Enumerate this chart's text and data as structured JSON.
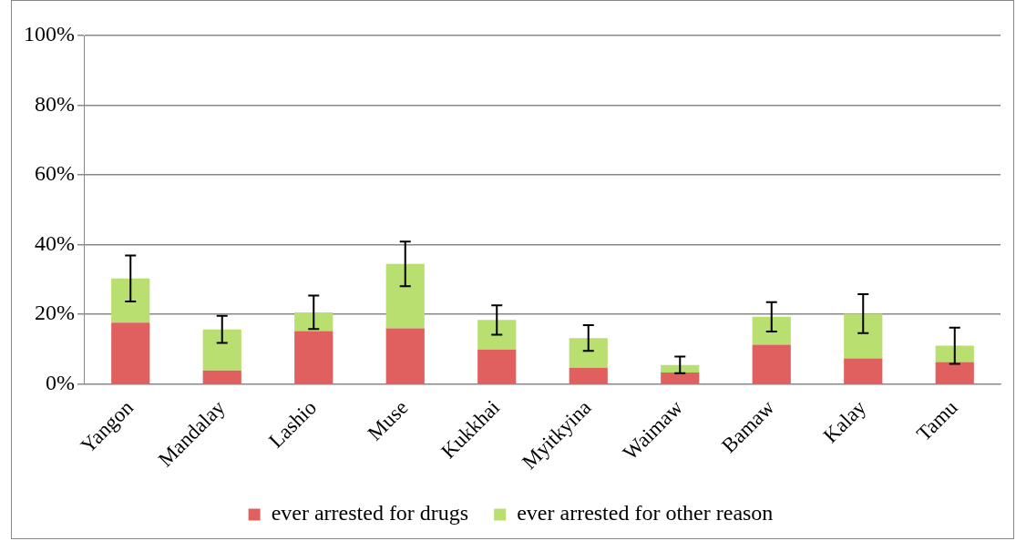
{
  "chart_data": {
    "type": "bar",
    "stacked": true,
    "categories": [
      "Yangon",
      "Mandalay",
      "Lashio",
      "Muse",
      "Kukkhai",
      "Myitkyina",
      "Waimaw",
      "Bamaw",
      "Kalay",
      "Tamu"
    ],
    "series": [
      {
        "name": "ever arrested for drugs",
        "color": "#e06060",
        "values": [
          17.6,
          3.9,
          15.2,
          16.0,
          9.9,
          4.7,
          3.3,
          11.3,
          7.4,
          6.3
        ]
      },
      {
        "name": "ever arrested for other reason",
        "color": "#b9df70",
        "values": [
          12.7,
          11.8,
          5.4,
          18.5,
          8.5,
          8.5,
          2.2,
          8.0,
          12.8,
          4.7
        ],
        "errors": [
          6.6,
          3.9,
          4.8,
          6.4,
          4.2,
          3.7,
          2.4,
          4.2,
          5.6,
          5.2
        ]
      }
    ],
    "ylim": [
      0,
      100
    ],
    "yticks": [
      {
        "value": 0,
        "label": "0%"
      },
      {
        "value": 20,
        "label": "20%"
      },
      {
        "value": 40,
        "label": "40%"
      },
      {
        "value": 60,
        "label": "60%"
      },
      {
        "value": 80,
        "label": "80%"
      },
      {
        "value": 100,
        "label": "100%"
      }
    ],
    "grid": "y",
    "legend": "bottom"
  }
}
